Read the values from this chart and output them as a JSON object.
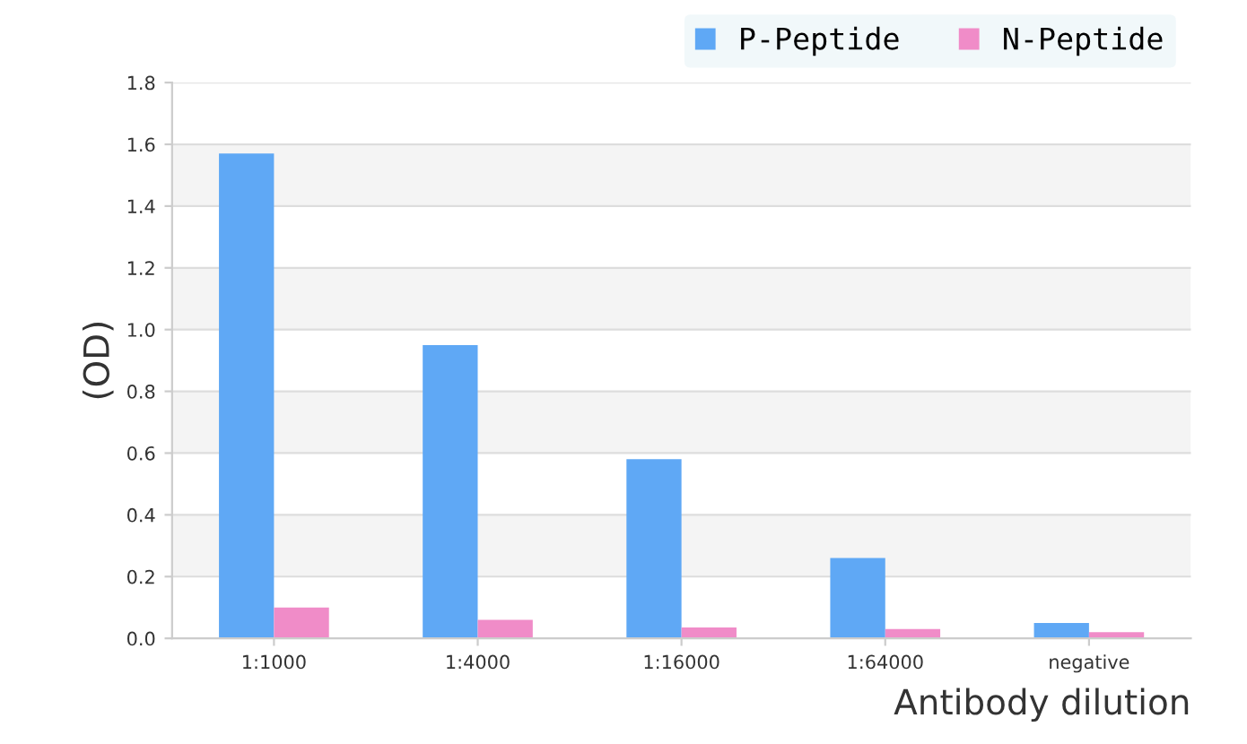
{
  "chart_data": {
    "type": "bar",
    "xlabel": "Antibody dilution",
    "ylabel": "(OD)",
    "categories": [
      "1:1000",
      "1:4000",
      "1:16000",
      "1:64000",
      "negative"
    ],
    "series": [
      {
        "name": "P-Peptide",
        "color": "#5fa8f5",
        "values": [
          1.57,
          0.95,
          0.58,
          0.26,
          0.05
        ]
      },
      {
        "name": "N-Peptide",
        "color": "#f08cc8",
        "values": [
          0.1,
          0.06,
          0.035,
          0.03,
          0.02
        ]
      }
    ],
    "ylim": [
      0,
      1.8
    ],
    "yticks": [
      {
        "value": 0,
        "label": "0.0"
      },
      0.2,
      0.4,
      0.6,
      0.8,
      {
        "value": 1,
        "label": "1.0"
      },
      1.2,
      1.4,
      1.6,
      1.8
    ],
    "grid": "y",
    "legend": "top right"
  }
}
